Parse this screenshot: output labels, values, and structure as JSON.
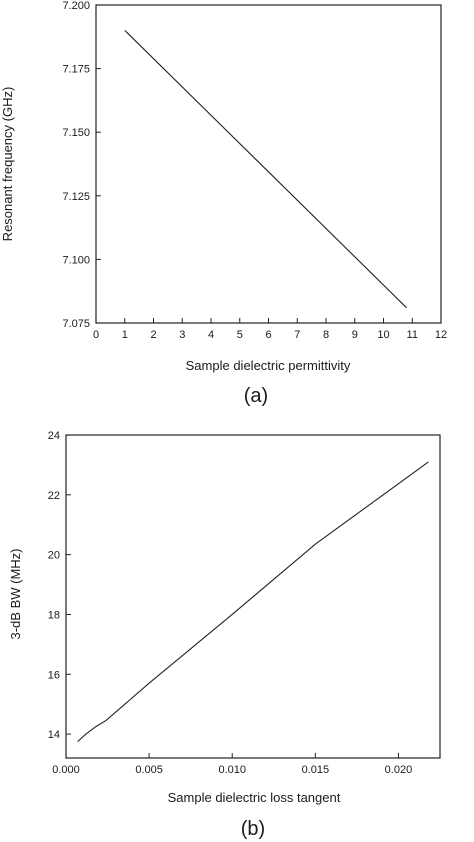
{
  "chart_data": [
    {
      "type": "line",
      "panel_label": "(a)",
      "xlabel": "Sample dielectric permittivity",
      "ylabel": "Resonant frequency (GHz)",
      "xlim": [
        0,
        12
      ],
      "ylim": [
        7.075,
        7.2
      ],
      "xticks": [
        "0",
        "1",
        "2",
        "3",
        "4",
        "5",
        "6",
        "7",
        "8",
        "9",
        "10",
        "11",
        "12"
      ],
      "yticks": [
        "7.075",
        "7.100",
        "7.125",
        "7.150",
        "7.175",
        "7.200"
      ],
      "series": [
        {
          "x": [
            1.0,
            10.8
          ],
          "y": [
            7.19,
            7.081
          ]
        }
      ],
      "grid": false
    },
    {
      "type": "line",
      "panel_label": "(b)",
      "xlabel": "Sample dielectric loss tangent",
      "ylabel": "3-dB BW (MHz)",
      "xlim": [
        0.0,
        0.0225
      ],
      "ylim": [
        13.2,
        24
      ],
      "xticks": [
        "0.000",
        "0.005",
        "0.010",
        "0.015",
        "0.020"
      ],
      "yticks": [
        "14",
        "16",
        "18",
        "20",
        "22",
        "24"
      ],
      "series": [
        {
          "x": [
            0.0007,
            0.0012,
            0.0018,
            0.0024,
            0.005,
            0.01,
            0.015,
            0.0218
          ],
          "y": [
            13.75,
            14.0,
            14.25,
            14.45,
            15.7,
            18.0,
            20.35,
            23.1
          ]
        }
      ],
      "grid": false
    }
  ]
}
